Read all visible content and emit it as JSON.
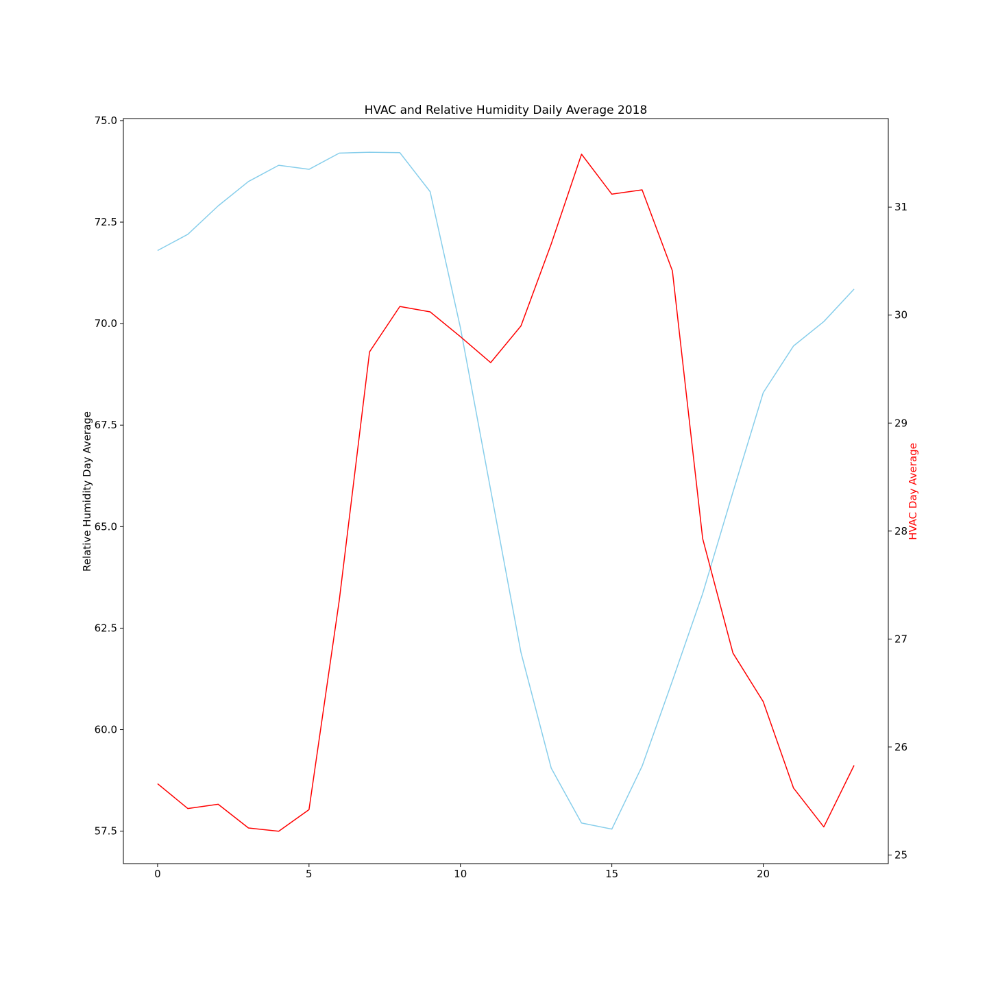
{
  "chart_data": {
    "type": "line",
    "title": "HVAC and Relative Humidity Daily Average 2018",
    "xlabel": "",
    "x": [
      0,
      1,
      2,
      3,
      4,
      5,
      6,
      7,
      8,
      9,
      10,
      11,
      12,
      13,
      14,
      15,
      16,
      17,
      18,
      19,
      20,
      21,
      22,
      23
    ],
    "xlim": [
      -1.13,
      24.13
    ],
    "xticks": [
      0,
      5,
      10,
      15,
      20
    ],
    "y_left": {
      "label": "Relative Humidity Day Average",
      "lim": [
        56.7,
        75.05
      ],
      "ticks": [
        57.5,
        60.0,
        62.5,
        65.0,
        67.5,
        70.0,
        72.5,
        75.0
      ],
      "tick_labels": [
        "57.5",
        "60.0",
        "62.5",
        "65.0",
        "67.5",
        "70.0",
        "72.5",
        "75.0"
      ]
    },
    "y_right": {
      "label": "HVAC Day Average",
      "label_color": "#ff0000",
      "lim": [
        24.92,
        31.82
      ],
      "ticks": [
        25,
        26,
        27,
        28,
        29,
        30,
        31
      ],
      "tick_labels": [
        "25",
        "26",
        "27",
        "28",
        "29",
        "30",
        "31"
      ]
    },
    "series": [
      {
        "axis": "left",
        "color": "#87ceeb",
        "values": [
          71.8,
          72.2,
          72.9,
          73.5,
          73.9,
          73.8,
          74.2,
          74.22,
          74.21,
          73.25,
          69.9,
          65.9,
          61.9,
          59.05,
          57.7,
          57.55,
          59.1,
          61.2,
          63.35,
          65.85,
          68.3,
          69.45,
          70.05,
          70.85
        ]
      },
      {
        "axis": "right",
        "color": "#ff0000",
        "values": [
          25.66,
          25.43,
          25.47,
          25.25,
          25.22,
          25.42,
          27.36,
          29.66,
          30.08,
          30.03,
          29.8,
          29.56,
          29.9,
          30.66,
          31.49,
          31.12,
          31.16,
          30.41,
          27.93,
          26.87,
          26.42,
          25.62,
          25.26,
          25.83
        ]
      }
    ]
  }
}
